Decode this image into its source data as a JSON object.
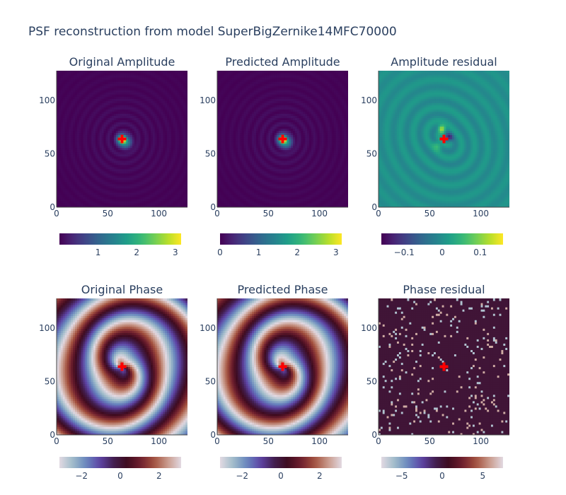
{
  "figure": {
    "title": "PSF reconstruction from model SuperBigZernike14MFC70000"
  },
  "chart_data": [
    {
      "type": "heatmap",
      "title": "Original Amplitude",
      "colorscale": "viridis",
      "xlim": [
        0,
        128
      ],
      "ylim": [
        0,
        128
      ],
      "xticks": [
        0,
        50,
        100
      ],
      "yticks": [
        0,
        50,
        100
      ],
      "zlim": [
        0,
        3.15
      ],
      "colorbar_ticks": [
        1,
        2,
        3
      ],
      "colorbar_labels": [
        "1",
        "2",
        "3"
      ],
      "marker": {
        "symbol": "cross",
        "color": "#ff0000",
        "x": 64,
        "y": 64
      },
      "pattern": "amplitude"
    },
    {
      "type": "heatmap",
      "title": "Predicted Amplitude",
      "colorscale": "viridis",
      "xlim": [
        0,
        128
      ],
      "ylim": [
        0,
        128
      ],
      "xticks": [
        0,
        50,
        100
      ],
      "yticks": [
        0,
        50,
        100
      ],
      "zlim": [
        0,
        3.15
      ],
      "colorbar_ticks": [
        0,
        1,
        2,
        3
      ],
      "colorbar_labels": [
        "0",
        "1",
        "2",
        "3"
      ],
      "marker": {
        "symbol": "cross",
        "color": "#ff0000",
        "x": 64,
        "y": 64
      },
      "pattern": "amplitude"
    },
    {
      "type": "heatmap",
      "title": "Amplitude residual",
      "colorscale": "viridis",
      "xlim": [
        0,
        128
      ],
      "ylim": [
        0,
        128
      ],
      "xticks": [
        0,
        50,
        100
      ],
      "yticks": [
        0,
        50,
        100
      ],
      "zlim": [
        -0.16,
        0.16
      ],
      "colorbar_ticks": [
        -0.1,
        0,
        0.1
      ],
      "colorbar_labels": [
        "−0.1",
        "0",
        "0.1"
      ],
      "marker": {
        "symbol": "cross",
        "color": "#ff0000",
        "x": 64,
        "y": 64
      },
      "pattern": "amp_residual"
    },
    {
      "type": "heatmap",
      "title": "Original Phase",
      "colorscale": "twilight",
      "xlim": [
        0,
        128
      ],
      "ylim": [
        0,
        128
      ],
      "xticks": [
        0,
        50,
        100
      ],
      "yticks": [
        0,
        50,
        100
      ],
      "zlim": [
        -3.14,
        3.14
      ],
      "colorbar_ticks": [
        -2,
        0,
        2
      ],
      "colorbar_labels": [
        "−2",
        "0",
        "2"
      ],
      "marker": {
        "symbol": "cross",
        "color": "#ff0000",
        "x": 64,
        "y": 64
      },
      "pattern": "phase"
    },
    {
      "type": "heatmap",
      "title": "Predicted Phase",
      "colorscale": "twilight",
      "xlim": [
        0,
        128
      ],
      "ylim": [
        0,
        128
      ],
      "xticks": [
        0,
        50,
        100
      ],
      "yticks": [
        0,
        50,
        100
      ],
      "zlim": [
        -3.14,
        3.14
      ],
      "colorbar_ticks": [
        -2,
        0,
        2
      ],
      "colorbar_labels": [
        "−2",
        "0",
        "2"
      ],
      "marker": {
        "symbol": "cross",
        "color": "#ff0000",
        "x": 64,
        "y": 64
      },
      "pattern": "phase"
    },
    {
      "type": "heatmap",
      "title": "Phase residual",
      "colorscale": "twilight",
      "xlim": [
        0,
        128
      ],
      "ylim": [
        0,
        128
      ],
      "xticks": [
        0,
        50,
        100
      ],
      "yticks": [
        0,
        50,
        100
      ],
      "zlim": [
        -7.5,
        7.5
      ],
      "colorbar_ticks": [
        -5,
        0,
        5
      ],
      "colorbar_labels": [
        "−5",
        "0",
        "5"
      ],
      "marker": {
        "symbol": "cross",
        "color": "#ff0000",
        "x": 64,
        "y": 64
      },
      "pattern": "phase_residual"
    }
  ]
}
